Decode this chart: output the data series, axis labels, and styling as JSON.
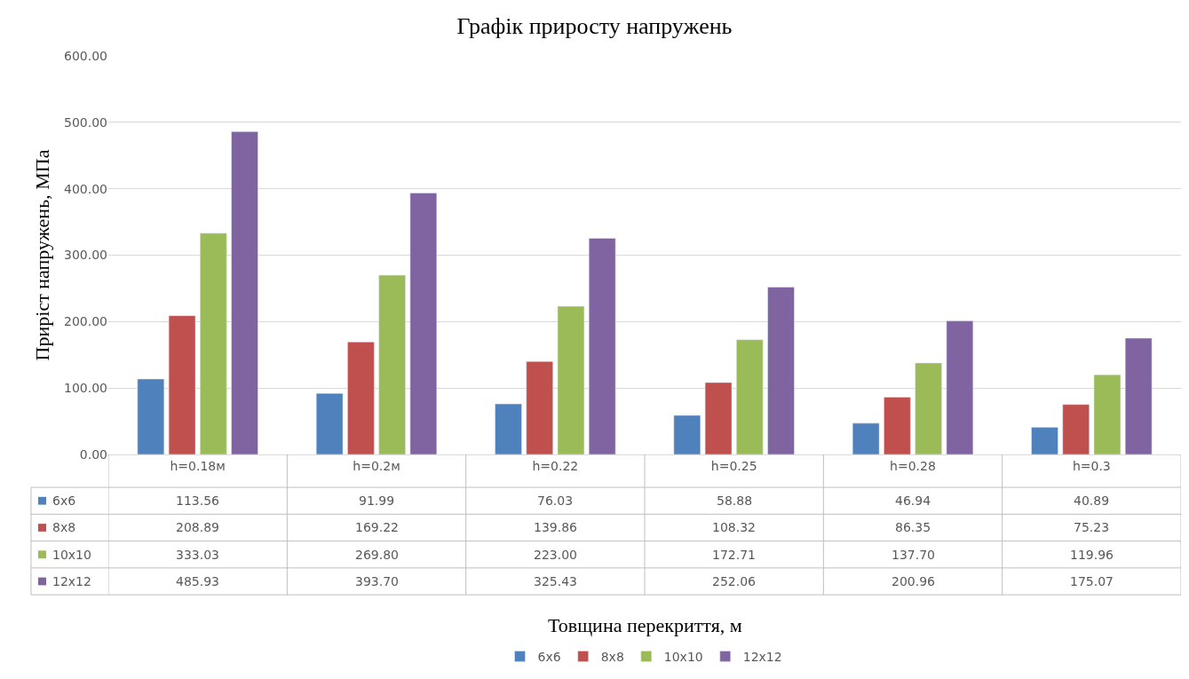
{
  "chart_data": {
    "type": "bar",
    "title": "Графік приросту напружень",
    "annotations": [
      "Товщина перекриття, м"
    ],
    "ylabel": "Приріст напружень, МПа",
    "categories": [
      "h=0.18м",
      "h=0.2м",
      "h=0.22",
      "h=0.25",
      "h=0.28",
      "h=0.3"
    ],
    "series": [
      {
        "name": "6x6",
        "color": "#4f81bd",
        "values": [
          113.56,
          91.99,
          76.03,
          58.88,
          46.94,
          40.89
        ],
        "value_labels": [
          "113.56",
          "91.99",
          "76.03",
          "58.88",
          "46.94",
          "40.89"
        ]
      },
      {
        "name": "8x8",
        "color": "#c0504d",
        "values": [
          208.89,
          169.22,
          139.86,
          108.32,
          86.35,
          75.23
        ],
        "value_labels": [
          "208.89",
          "169.22",
          "139.86",
          "108.32",
          "86.35",
          "75.23"
        ]
      },
      {
        "name": "10x10",
        "color": "#9bbb59",
        "values": [
          333.03,
          269.8,
          223.0,
          172.71,
          137.7,
          119.96
        ],
        "value_labels": [
          "333.03",
          "269.80",
          "223.00",
          "172.71",
          "137.70",
          "119.96"
        ]
      },
      {
        "name": "12x12",
        "color": "#8064a2",
        "values": [
          485.93,
          393.7,
          325.43,
          252.06,
          200.96,
          175.07
        ],
        "value_labels": [
          "485.93",
          "393.70",
          "325.43",
          "252.06",
          "200.96",
          "175.07"
        ]
      }
    ],
    "ylim": [
      0,
      600
    ],
    "yticks": [
      {
        "value": 0,
        "label": "0.00"
      },
      {
        "value": 100,
        "label": "100.00"
      },
      {
        "value": 200,
        "label": "200.00"
      },
      {
        "value": 300,
        "label": "300.00"
      },
      {
        "value": 400,
        "label": "400.00"
      },
      {
        "value": 500,
        "label": "500.00"
      },
      {
        "value": 600,
        "label": "600.00"
      }
    ],
    "grid": "y",
    "legend": "bottom"
  }
}
